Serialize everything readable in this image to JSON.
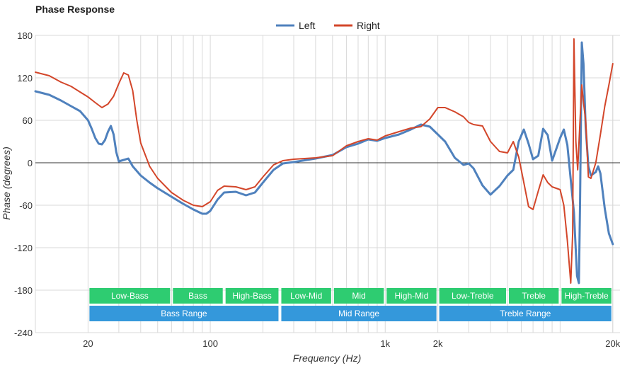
{
  "chart_data": {
    "type": "line",
    "title": "Phase Response",
    "xlabel": "Frequency (Hz)",
    "ylabel": "Phase (degrees)",
    "x_scale": "log",
    "xlim": [
      10,
      22000
    ],
    "ylim": [
      -240,
      180
    ],
    "y_ticks": [
      180,
      120,
      60,
      0,
      -60,
      -120,
      -180,
      -240
    ],
    "x_ticks": [
      {
        "value": 20,
        "label": "20"
      },
      {
        "value": 100,
        "label": "100"
      },
      {
        "value": 1000,
        "label": "1k"
      },
      {
        "value": 2000,
        "label": "2k"
      },
      {
        "value": 20000,
        "label": "20k"
      }
    ],
    "grid": true,
    "legend_position": "top-center",
    "series": [
      {
        "name": "Left",
        "color": "#4f81bd",
        "points": [
          [
            10,
            101
          ],
          [
            12,
            96
          ],
          [
            14,
            88
          ],
          [
            16,
            80
          ],
          [
            18,
            73
          ],
          [
            20,
            60
          ],
          [
            21,
            48
          ],
          [
            22,
            35
          ],
          [
            23,
            27
          ],
          [
            24,
            26
          ],
          [
            25,
            32
          ],
          [
            26,
            44
          ],
          [
            27,
            52
          ],
          [
            28,
            40
          ],
          [
            29,
            15
          ],
          [
            30,
            2
          ],
          [
            32,
            4
          ],
          [
            34,
            6
          ],
          [
            36,
            -5
          ],
          [
            40,
            -18
          ],
          [
            45,
            -28
          ],
          [
            50,
            -36
          ],
          [
            60,
            -48
          ],
          [
            70,
            -58
          ],
          [
            80,
            -66
          ],
          [
            90,
            -72
          ],
          [
            95,
            -72
          ],
          [
            100,
            -68
          ],
          [
            110,
            -52
          ],
          [
            120,
            -42
          ],
          [
            140,
            -41
          ],
          [
            160,
            -46
          ],
          [
            180,
            -42
          ],
          [
            200,
            -28
          ],
          [
            230,
            -10
          ],
          [
            260,
            -1
          ],
          [
            300,
            1
          ],
          [
            400,
            6
          ],
          [
            500,
            11
          ],
          [
            600,
            22
          ],
          [
            700,
            27
          ],
          [
            800,
            33
          ],
          [
            900,
            31
          ],
          [
            1000,
            35
          ],
          [
            1200,
            40
          ],
          [
            1400,
            47
          ],
          [
            1600,
            54
          ],
          [
            1800,
            51
          ],
          [
            2000,
            40
          ],
          [
            2200,
            30
          ],
          [
            2500,
            7
          ],
          [
            2800,
            -3
          ],
          [
            3000,
            -1
          ],
          [
            3200,
            -8
          ],
          [
            3600,
            -32
          ],
          [
            4000,
            -45
          ],
          [
            4500,
            -33
          ],
          [
            5000,
            -18
          ],
          [
            5400,
            -10
          ],
          [
            5800,
            30
          ],
          [
            6200,
            47
          ],
          [
            6600,
            27
          ],
          [
            7000,
            5
          ],
          [
            7500,
            10
          ],
          [
            8000,
            48
          ],
          [
            8500,
            39
          ],
          [
            9000,
            3
          ],
          [
            10000,
            35
          ],
          [
            10500,
            47
          ],
          [
            11000,
            25
          ],
          [
            12000,
            -70
          ],
          [
            12500,
            -160
          ],
          [
            12800,
            -170
          ],
          [
            13000,
            -60
          ],
          [
            13300,
            170
          ],
          [
            13600,
            140
          ],
          [
            14000,
            50
          ],
          [
            14500,
            -5
          ],
          [
            15000,
            -18
          ],
          [
            16000,
            -13
          ],
          [
            16500,
            -5
          ],
          [
            17000,
            -15
          ],
          [
            18000,
            -65
          ],
          [
            19000,
            -100
          ],
          [
            20000,
            -115
          ]
        ]
      },
      {
        "name": "Right",
        "color": "#d3462a",
        "points": [
          [
            10,
            128
          ],
          [
            12,
            123
          ],
          [
            14,
            114
          ],
          [
            16,
            108
          ],
          [
            18,
            100
          ],
          [
            20,
            93
          ],
          [
            22,
            85
          ],
          [
            24,
            78
          ],
          [
            26,
            83
          ],
          [
            28,
            94
          ],
          [
            30,
            112
          ],
          [
            32,
            127
          ],
          [
            34,
            124
          ],
          [
            36,
            102
          ],
          [
            38,
            60
          ],
          [
            40,
            28
          ],
          [
            45,
            -5
          ],
          [
            50,
            -22
          ],
          [
            60,
            -42
          ],
          [
            70,
            -53
          ],
          [
            80,
            -60
          ],
          [
            90,
            -62
          ],
          [
            100,
            -55
          ],
          [
            110,
            -39
          ],
          [
            120,
            -33
          ],
          [
            140,
            -34
          ],
          [
            160,
            -38
          ],
          [
            180,
            -34
          ],
          [
            200,
            -20
          ],
          [
            230,
            -3
          ],
          [
            260,
            3
          ],
          [
            300,
            5
          ],
          [
            400,
            7
          ],
          [
            500,
            10
          ],
          [
            600,
            24
          ],
          [
            700,
            30
          ],
          [
            800,
            34
          ],
          [
            900,
            32
          ],
          [
            1000,
            38
          ],
          [
            1200,
            44
          ],
          [
            1400,
            49
          ],
          [
            1600,
            51
          ],
          [
            1800,
            62
          ],
          [
            2000,
            78
          ],
          [
            2200,
            78
          ],
          [
            2500,
            72
          ],
          [
            2800,
            65
          ],
          [
            3000,
            57
          ],
          [
            3200,
            54
          ],
          [
            3600,
            52
          ],
          [
            4000,
            30
          ],
          [
            4500,
            16
          ],
          [
            5000,
            14
          ],
          [
            5400,
            30
          ],
          [
            5800,
            8
          ],
          [
            6200,
            -28
          ],
          [
            6600,
            -62
          ],
          [
            7000,
            -66
          ],
          [
            7500,
            -40
          ],
          [
            8000,
            -17
          ],
          [
            8500,
            -28
          ],
          [
            9000,
            -34
          ],
          [
            10000,
            -38
          ],
          [
            10500,
            -60
          ],
          [
            11000,
            -110
          ],
          [
            11500,
            -170
          ],
          [
            11800,
            -100
          ],
          [
            12000,
            175
          ],
          [
            12300,
            30
          ],
          [
            12600,
            -10
          ],
          [
            13000,
            60
          ],
          [
            13300,
            110
          ],
          [
            13600,
            85
          ],
          [
            14000,
            60
          ],
          [
            14500,
            -20
          ],
          [
            15000,
            -22
          ],
          [
            16000,
            0
          ],
          [
            17000,
            40
          ],
          [
            18000,
            80
          ],
          [
            19000,
            110
          ],
          [
            20000,
            140
          ]
        ]
      }
    ],
    "bands": [
      {
        "label": "Low-Bass",
        "from": 20,
        "to": 60,
        "row": 1
      },
      {
        "label": "Bass",
        "from": 60,
        "to": 120,
        "row": 1
      },
      {
        "label": "High-Bass",
        "from": 120,
        "to": 250,
        "row": 1
      },
      {
        "label": "Low-Mid",
        "from": 250,
        "to": 500,
        "row": 1
      },
      {
        "label": "Mid",
        "from": 500,
        "to": 1000,
        "row": 1
      },
      {
        "label": "High-Mid",
        "from": 1000,
        "to": 2000,
        "row": 1
      },
      {
        "label": "Low-Treble",
        "from": 2000,
        "to": 5000,
        "row": 1
      },
      {
        "label": "Treble",
        "from": 5000,
        "to": 10000,
        "row": 1
      },
      {
        "label": "High-Treble",
        "from": 10000,
        "to": 20000,
        "row": 1
      },
      {
        "label": "Bass Range",
        "from": 20,
        "to": 250,
        "row": 2
      },
      {
        "label": "Mid Range",
        "from": 250,
        "to": 2000,
        "row": 2
      },
      {
        "label": "Treble Range",
        "from": 2000,
        "to": 20000,
        "row": 2
      }
    ],
    "band_colors": {
      "row1": "#2ecc71",
      "row2": "#3498db"
    }
  }
}
